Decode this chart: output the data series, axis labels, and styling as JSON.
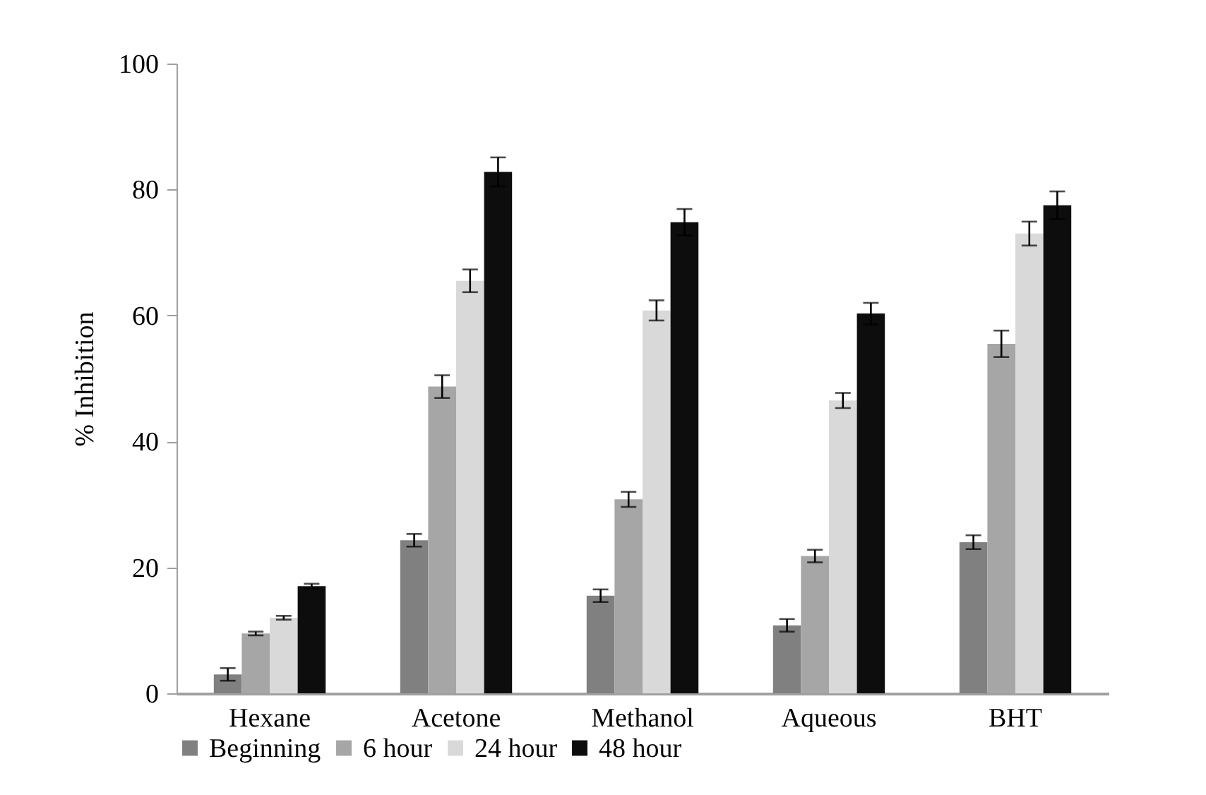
{
  "chart_data": {
    "type": "bar",
    "ylabel": "% Inhibition",
    "categories": [
      "Hexane",
      "Acetone",
      "Methanol",
      "Aqueous",
      "BHT"
    ],
    "series": [
      {
        "name": "Beginning",
        "color": "#808080",
        "values": [
          3.0,
          24.3,
          15.5,
          10.8,
          24.0
        ],
        "errors": [
          1.0,
          1.0,
          1.0,
          1.0,
          1.1
        ]
      },
      {
        "name": "6 hour",
        "color": "#a6a6a6",
        "values": [
          9.5,
          48.7,
          30.8,
          21.8,
          55.5
        ],
        "errors": [
          0.3,
          1.8,
          1.2,
          1.0,
          2.1
        ]
      },
      {
        "name": "24 hour",
        "color": "#d9d9d9",
        "values": [
          12.0,
          65.5,
          60.8,
          46.5,
          73.0
        ],
        "errors": [
          0.3,
          1.8,
          1.6,
          1.2,
          1.9
        ]
      },
      {
        "name": "48 hour",
        "color": "#0d0d0d",
        "values": [
          17.0,
          82.8,
          74.8,
          60.3,
          77.5
        ],
        "errors": [
          0.4,
          2.3,
          2.1,
          1.7,
          2.2
        ]
      }
    ],
    "ylim": [
      0,
      100
    ],
    "yticks": [
      0,
      20,
      40,
      60,
      80,
      100
    ],
    "grid": false,
    "legend": "bottom"
  }
}
